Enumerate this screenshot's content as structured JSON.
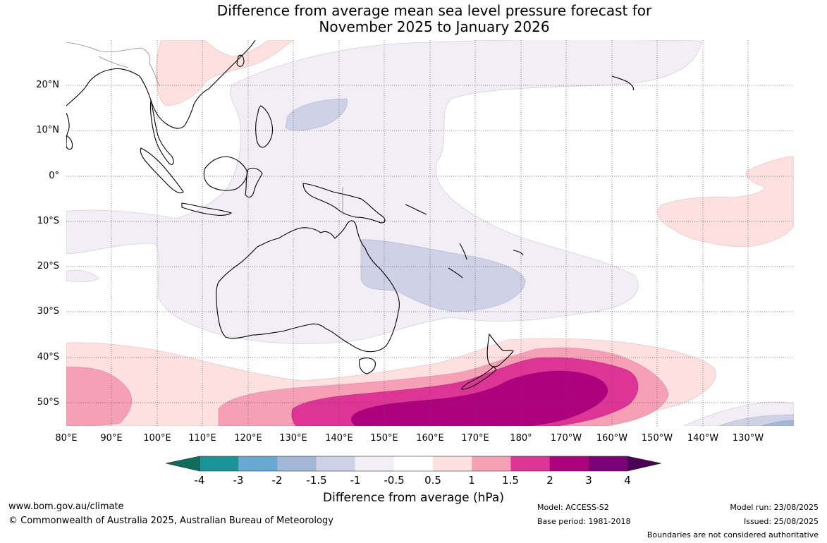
{
  "title_line1": "Difference from average mean sea level pressure forecast for",
  "title_line2": "November 2025 to January 2026",
  "lat_labels": [
    "20°N",
    "10°N",
    "0°",
    "10°S",
    "20°S",
    "30°S",
    "40°S",
    "50°S"
  ],
  "lon_labels": [
    "80°E",
    "90°E",
    "100°E",
    "110°E",
    "120°E",
    "130°E",
    "140°E",
    "150°E",
    "160°E",
    "170°E",
    "180°",
    "170°W",
    "160°W",
    "150°W",
    "140°W",
    "130°W"
  ],
  "colorbar": {
    "title": "Difference from average (hPa)",
    "ticks": [
      "-4",
      "-3",
      "-2",
      "-1.5",
      "-1",
      "-0.5",
      "0.5",
      "1",
      "1.5",
      "2",
      "3",
      "4"
    ],
    "colors": [
      "#0d6e5a",
      "#1a9496",
      "#67a9d3",
      "#a3b7d6",
      "#cfd2e6",
      "#f2eef6",
      "#ffffff",
      "#fde0e0",
      "#f6a0b6",
      "#dd3496",
      "#ae017e",
      "#7a0177",
      "#4b0055"
    ]
  },
  "footer": {
    "website": "www.bom.gov.au/climate",
    "copyright": "© Commonwealth of Australia 2025, Australian Bureau of Meteorology",
    "model": "Model: ACCESS-S2",
    "base_period": "Base period: 1981-2018",
    "model_run": "Model run: 23/08/2025",
    "issued": "Issued: 25/08/2025",
    "disclaimer": "Boundaries are not considered authoritative"
  }
}
